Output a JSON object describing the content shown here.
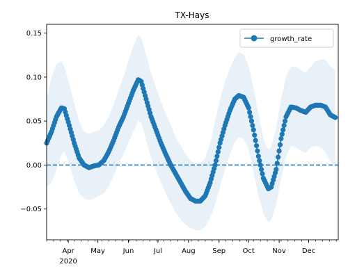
{
  "chart_data": {
    "type": "line",
    "title": "TX-Hays",
    "xlabel": "",
    "ylabel": "",
    "x_axis": "date",
    "x_range": [
      "2020-03-10",
      "2020-12-31"
    ],
    "ylim": [
      -0.085,
      0.16
    ],
    "y_ticks": [
      -0.05,
      0.0,
      0.05,
      0.1,
      0.15
    ],
    "y_tick_labels": [
      "−0.05",
      "0.00",
      "0.05",
      "0.10",
      "0.15"
    ],
    "x_ticks": [
      {
        "date": "2020-04-01",
        "label": "Apr",
        "year": "2020"
      },
      {
        "date": "2020-05-01",
        "label": "May"
      },
      {
        "date": "2020-06-01",
        "label": "Jun"
      },
      {
        "date": "2020-07-01",
        "label": "Jul"
      },
      {
        "date": "2020-08-01",
        "label": "Aug"
      },
      {
        "date": "2020-09-01",
        "label": "Sep"
      },
      {
        "date": "2020-10-01",
        "label": "Oct"
      },
      {
        "date": "2020-11-01",
        "label": "Nov"
      },
      {
        "date": "2020-12-01",
        "label": "Dec"
      }
    ],
    "grid": false,
    "legend": {
      "position": "top-right",
      "entries": [
        "growth_rate"
      ]
    },
    "reference_line": {
      "y": 0.0,
      "style": "dashed"
    },
    "colors": {
      "series": "#1f77b4",
      "band": "#1f77b4"
    },
    "series": [
      {
        "name": "growth_rate",
        "marker": "circle",
        "points": [
          [
            "2020-03-10",
            0.025
          ],
          [
            "2020-03-15",
            0.038
          ],
          [
            "2020-03-20",
            0.055
          ],
          [
            "2020-03-25",
            0.065
          ],
          [
            "2020-03-28",
            0.064
          ],
          [
            "2020-04-02",
            0.045
          ],
          [
            "2020-04-07",
            0.025
          ],
          [
            "2020-04-12",
            0.008
          ],
          [
            "2020-04-17",
            0.0
          ],
          [
            "2020-04-22",
            -0.003
          ],
          [
            "2020-04-27",
            -0.001
          ],
          [
            "2020-05-02",
            0.0
          ],
          [
            "2020-05-07",
            0.005
          ],
          [
            "2020-05-12",
            0.015
          ],
          [
            "2020-05-17",
            0.028
          ],
          [
            "2020-05-22",
            0.043
          ],
          [
            "2020-05-27",
            0.055
          ],
          [
            "2020-06-01",
            0.07
          ],
          [
            "2020-06-06",
            0.085
          ],
          [
            "2020-06-11",
            0.097
          ],
          [
            "2020-06-14",
            0.095
          ],
          [
            "2020-06-19",
            0.075
          ],
          [
            "2020-06-24",
            0.055
          ],
          [
            "2020-06-29",
            0.04
          ],
          [
            "2020-07-04",
            0.025
          ],
          [
            "2020-07-09",
            0.012
          ],
          [
            "2020-07-14",
            0.0
          ],
          [
            "2020-07-19",
            -0.01
          ],
          [
            "2020-07-24",
            -0.02
          ],
          [
            "2020-07-29",
            -0.03
          ],
          [
            "2020-08-03",
            -0.038
          ],
          [
            "2020-08-08",
            -0.041
          ],
          [
            "2020-08-13",
            -0.041
          ],
          [
            "2020-08-18",
            -0.035
          ],
          [
            "2020-08-23",
            -0.02
          ],
          [
            "2020-08-28",
            0.0
          ],
          [
            "2020-09-02",
            0.025
          ],
          [
            "2020-09-07",
            0.045
          ],
          [
            "2020-09-12",
            0.062
          ],
          [
            "2020-09-17",
            0.075
          ],
          [
            "2020-09-21",
            0.079
          ],
          [
            "2020-09-26",
            0.077
          ],
          [
            "2020-10-01",
            0.065
          ],
          [
            "2020-10-06",
            0.04
          ],
          [
            "2020-10-11",
            0.01
          ],
          [
            "2020-10-16",
            -0.015
          ],
          [
            "2020-10-21",
            -0.027
          ],
          [
            "2020-10-24",
            -0.025
          ],
          [
            "2020-10-29",
            -0.005
          ],
          [
            "2020-11-03",
            0.03
          ],
          [
            "2020-11-08",
            0.055
          ],
          [
            "2020-11-13",
            0.066
          ],
          [
            "2020-11-18",
            0.065
          ],
          [
            "2020-11-23",
            0.062
          ],
          [
            "2020-11-28",
            0.06
          ],
          [
            "2020-12-03",
            0.066
          ],
          [
            "2020-12-08",
            0.068
          ],
          [
            "2020-12-13",
            0.068
          ],
          [
            "2020-12-18",
            0.066
          ],
          [
            "2020-12-23",
            0.057
          ],
          [
            "2020-12-28",
            0.054
          ]
        ],
        "band_upper": [
          0.075,
          0.1,
          0.115,
          0.118,
          0.112,
          0.092,
          0.07,
          0.05,
          0.038,
          0.035,
          0.038,
          0.04,
          0.045,
          0.055,
          0.068,
          0.085,
          0.1,
          0.118,
          0.135,
          0.148,
          0.145,
          0.125,
          0.105,
          0.088,
          0.072,
          0.058,
          0.045,
          0.032,
          0.022,
          0.012,
          0.005,
          0.002,
          0.002,
          0.008,
          0.025,
          0.05,
          0.075,
          0.095,
          0.11,
          0.122,
          0.128,
          0.126,
          0.112,
          0.088,
          0.058,
          0.03,
          0.018,
          0.02,
          0.042,
          0.075,
          0.1,
          0.112,
          0.112,
          0.108,
          0.105,
          0.112,
          0.118,
          0.12,
          0.12,
          0.112,
          0.108
        ],
        "band_lower": [
          -0.025,
          -0.02,
          -0.005,
          0.012,
          0.016,
          0.0,
          -0.018,
          -0.032,
          -0.038,
          -0.04,
          -0.038,
          -0.035,
          -0.032,
          -0.025,
          -0.012,
          0.002,
          0.012,
          0.025,
          0.038,
          0.05,
          0.048,
          0.028,
          0.008,
          -0.006,
          -0.02,
          -0.032,
          -0.044,
          -0.054,
          -0.062,
          -0.068,
          -0.072,
          -0.074,
          -0.074,
          -0.07,
          -0.06,
          -0.045,
          -0.025,
          -0.005,
          0.012,
          0.026,
          0.032,
          0.03,
          0.018,
          -0.008,
          -0.035,
          -0.055,
          -0.065,
          -0.062,
          -0.045,
          -0.015,
          0.01,
          0.022,
          0.02,
          0.016,
          0.014,
          0.02,
          0.022,
          0.02,
          0.015,
          0.004,
          -0.002
        ]
      }
    ]
  }
}
